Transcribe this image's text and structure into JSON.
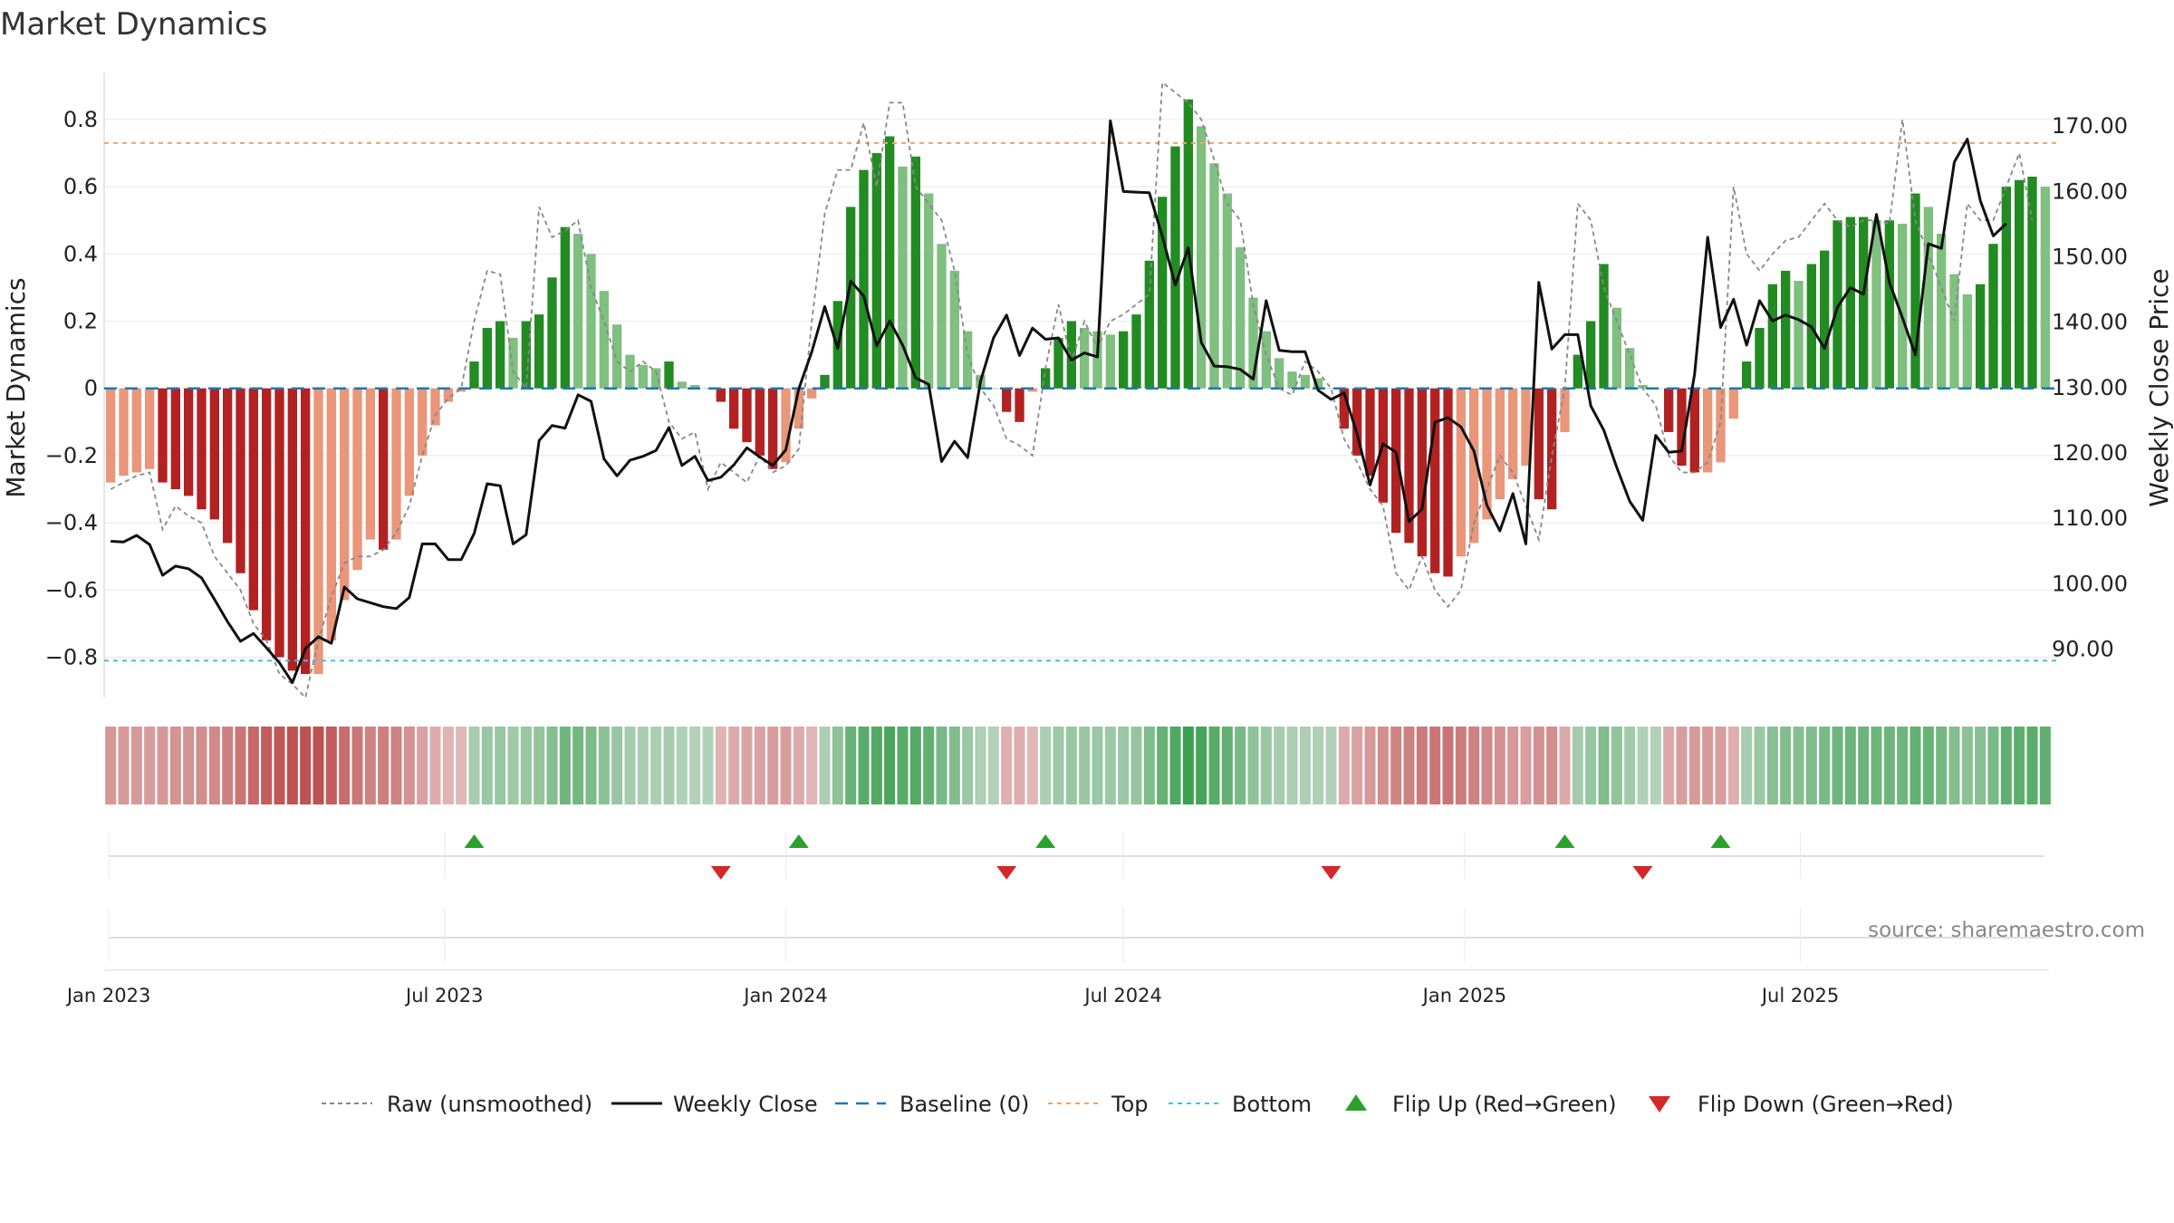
{
  "chart_data": {
    "type": "bar",
    "title": "Market Dynamics",
    "ylabel": "Market Dynamics",
    "y2label": "Weekly Close Price",
    "ylim": [
      -0.92,
      0.94
    ],
    "y2lim": [
      82.6,
      178.2
    ],
    "yticks": [
      "0.8",
      "0.6",
      "0.4",
      "0.2",
      "0",
      "−0.2",
      "−0.4",
      "−0.6",
      "−0.8"
    ],
    "y2ticks": [
      "170.00",
      "160.00",
      "150.00",
      "140.00",
      "130.00",
      "120.00",
      "110.00",
      "100.00",
      "90.00"
    ],
    "xticks": [
      "Jan 2023",
      "Jul 2023",
      "Jan 2024",
      "Jul 2024",
      "Jan 2025",
      "Jul 2025"
    ],
    "x_start": "2023-01-02",
    "x_end": "2025-10-06",
    "top_level": 0.73,
    "bottom_level": -0.81,
    "baseline": 0,
    "grid": true,
    "legend_position": "bottom-center",
    "source": "source: sharemaestro.com",
    "colors": {
      "pos_strong": "#228b22",
      "pos_weak": "#7fbf7f",
      "neg_strong": "#b22222",
      "neg_weak": "#e9967a",
      "raw": "#888888",
      "close": "#111111",
      "baseline": "#1f77b4",
      "top": "#f4a261",
      "bottom": "#3fc1e0",
      "flip_up": "#2ca02c",
      "flip_down": "#d62728"
    },
    "series": [
      {
        "name": "Market Dynamics (smoothed)",
        "values": [
          -0.28,
          -0.26,
          -0.25,
          -0.24,
          -0.28,
          -0.3,
          -0.32,
          -0.36,
          -0.39,
          -0.46,
          -0.55,
          -0.66,
          -0.75,
          -0.8,
          -0.84,
          -0.85,
          -0.85,
          -0.75,
          -0.63,
          -0.54,
          -0.45,
          -0.48,
          -0.45,
          -0.32,
          -0.2,
          -0.11,
          -0.04,
          -0.01,
          0.08,
          0.18,
          0.2,
          0.15,
          0.2,
          0.22,
          0.33,
          0.48,
          0.46,
          0.4,
          0.29,
          0.19,
          0.1,
          0.07,
          0.06,
          0.08,
          0.02,
          0.01,
          0.0,
          -0.04,
          -0.12,
          -0.16,
          -0.2,
          -0.24,
          -0.22,
          -0.12,
          -0.03,
          0.04,
          0.26,
          0.54,
          0.65,
          0.7,
          0.75,
          0.66,
          0.69,
          0.58,
          0.43,
          0.35,
          0.17,
          0.04,
          0.0,
          -0.07,
          -0.1,
          -0.01,
          0.06,
          0.15,
          0.2,
          0.18,
          0.17,
          0.16,
          0.17,
          0.22,
          0.38,
          0.57,
          0.72,
          0.86,
          0.78,
          0.67,
          0.58,
          0.42,
          0.27,
          0.17,
          0.09,
          0.05,
          0.04,
          0.03,
          0.0,
          -0.12,
          -0.2,
          -0.26,
          -0.34,
          -0.43,
          -0.46,
          -0.5,
          -0.55,
          -0.56,
          -0.5,
          -0.46,
          -0.39,
          -0.33,
          -0.27,
          -0.23,
          -0.33,
          -0.36,
          -0.13,
          0.1,
          0.2,
          0.37,
          0.24,
          0.12,
          0.01,
          0.0,
          -0.13,
          -0.23,
          -0.25,
          -0.25,
          -0.22,
          -0.09,
          0.08,
          0.18,
          0.31,
          0.35,
          0.32,
          0.37,
          0.41,
          0.5,
          0.51,
          0.51,
          0.5,
          0.5,
          0.49,
          0.58,
          0.54,
          0.46,
          0.34,
          0.28,
          0.31,
          0.43,
          0.6,
          0.62,
          0.63,
          0.6
        ]
      },
      {
        "name": "Raw (unsmoothed)",
        "values": [
          -0.3,
          -0.28,
          -0.26,
          -0.25,
          -0.42,
          -0.35,
          -0.38,
          -0.4,
          -0.5,
          -0.55,
          -0.6,
          -0.7,
          -0.75,
          -0.85,
          -0.88,
          -0.92,
          -0.75,
          -0.62,
          -0.52,
          -0.5,
          -0.5,
          -0.48,
          -0.43,
          -0.35,
          -0.2,
          -0.08,
          -0.03,
          0.0,
          0.2,
          0.35,
          0.34,
          0.05,
          0.0,
          0.54,
          0.45,
          0.47,
          0.5,
          0.3,
          0.2,
          0.08,
          0.05,
          0.08,
          0.05,
          -0.1,
          -0.15,
          -0.13,
          -0.3,
          -0.22,
          -0.25,
          -0.28,
          -0.2,
          -0.25,
          -0.23,
          -0.18,
          0.2,
          0.52,
          0.65,
          0.65,
          0.79,
          0.6,
          0.85,
          0.85,
          0.6,
          0.55,
          0.5,
          0.35,
          0.1,
          0.0,
          -0.05,
          -0.15,
          -0.17,
          -0.2,
          0.06,
          0.25,
          0.08,
          0.2,
          0.12,
          0.2,
          0.22,
          0.25,
          0.28,
          0.91,
          0.88,
          0.85,
          0.8,
          0.68,
          0.55,
          0.5,
          0.25,
          0.1,
          0.0,
          -0.02,
          0.08,
          0.05,
          0.0,
          -0.15,
          -0.22,
          -0.3,
          -0.35,
          -0.55,
          -0.6,
          -0.5,
          -0.6,
          -0.65,
          -0.6,
          -0.4,
          -0.3,
          -0.2,
          -0.25,
          -0.35,
          -0.45,
          -0.2,
          0.0,
          0.55,
          0.5,
          0.3,
          0.2,
          0.1,
          0.0,
          -0.05,
          -0.2,
          -0.25,
          -0.25,
          -0.22,
          -0.1,
          0.6,
          0.4,
          0.35,
          0.4,
          0.44,
          0.45,
          0.5,
          0.55,
          0.5,
          0.48,
          0.5,
          0.5,
          0.49,
          0.8,
          0.5,
          0.4,
          0.3,
          0.2,
          0.55,
          0.5,
          0.5,
          0.6,
          0.7,
          0.5
        ]
      },
      {
        "name": "Weekly Close",
        "values": [
          106.5,
          106.4,
          107.4,
          106.0,
          101.3,
          102.7,
          102.3,
          100.9,
          97.6,
          94.2,
          91.2,
          92.4,
          90.2,
          87.9,
          84.9,
          90.1,
          91.9,
          90.9,
          99.5,
          97.7,
          97.1,
          96.5,
          96.2,
          97.9,
          106.1,
          106.1,
          103.7,
          103.7,
          107.7,
          115.3,
          115.0,
          106.1,
          107.5,
          121.9,
          124.2,
          123.8,
          128.9,
          127.9,
          119.1,
          116.5,
          118.9,
          119.5,
          120.4,
          123.9,
          118.1,
          119.5,
          115.8,
          116.3,
          118.2,
          120.8,
          119.4,
          118.1,
          120.5,
          129.8,
          135.5,
          142.4,
          136.0,
          146.3,
          144.0,
          136.4,
          140.2,
          136.5,
          131.5,
          130.5,
          118.7,
          121.8,
          119.3,
          131.0,
          137.6,
          141.1,
          134.9,
          139.1,
          137.4,
          137.6,
          134.2,
          135.3,
          134.7,
          170.8,
          160.0,
          159.9,
          159.8,
          153.1,
          145.7,
          151.4,
          136.9,
          133.3,
          133.2,
          132.8,
          131.3,
          143.3,
          135.7,
          135.5,
          135.5,
          129.6,
          128.2,
          129.2,
          122.9,
          115.1,
          121.4,
          120.1,
          109.5,
          111.4,
          124.7,
          125.4,
          124.0,
          120.3,
          112.0,
          108.1,
          113.8,
          106.1,
          146.1,
          135.9,
          138.1,
          138.1,
          127.2,
          123.5,
          117.8,
          112.6,
          109.7,
          122.7,
          120.1,
          120.3,
          132.1,
          153.0,
          139.2,
          143.5,
          136.5,
          143.3,
          140.2,
          141.1,
          140.4,
          139.3,
          136.0,
          142.3,
          145.3,
          144.3,
          156.5,
          146.1,
          140.7,
          135.0,
          152.0,
          151.3,
          164.5,
          168.0,
          158.6,
          153.2,
          155.1
        ]
      }
    ],
    "flips": [
      {
        "type": "up",
        "label": "Flip Up (Red→Green)",
        "week": 28
      },
      {
        "type": "down",
        "label": "Flip Down (Green→Red)",
        "week": 47
      },
      {
        "type": "up",
        "label": "Flip Up (Red→Green)",
        "week": 53
      },
      {
        "type": "down",
        "label": "Flip Down (Green→Red)",
        "week": 69
      },
      {
        "type": "up",
        "label": "Flip Up (Red→Green)",
        "week": 72
      },
      {
        "type": "down",
        "label": "Flip Down (Green→Red)",
        "week": 94
      },
      {
        "type": "up",
        "label": "Flip Up (Red→Green)",
        "week": 112
      },
      {
        "type": "down",
        "label": "Flip Down (Green→Red)",
        "week": 118
      },
      {
        "type": "up",
        "label": "Flip Up (Red→Green)",
        "week": 124
      }
    ],
    "legend": [
      {
        "key": "raw",
        "label": "Raw (unsmoothed)"
      },
      {
        "key": "close",
        "label": "Weekly Close"
      },
      {
        "key": "baseline",
        "label": "Baseline (0)"
      },
      {
        "key": "top",
        "label": "Top"
      },
      {
        "key": "bottom",
        "label": "Bottom"
      },
      {
        "key": "flip_up",
        "label": "Flip Up (Red→Green)"
      },
      {
        "key": "flip_down",
        "label": "Flip Down (Green→Red)"
      }
    ]
  }
}
